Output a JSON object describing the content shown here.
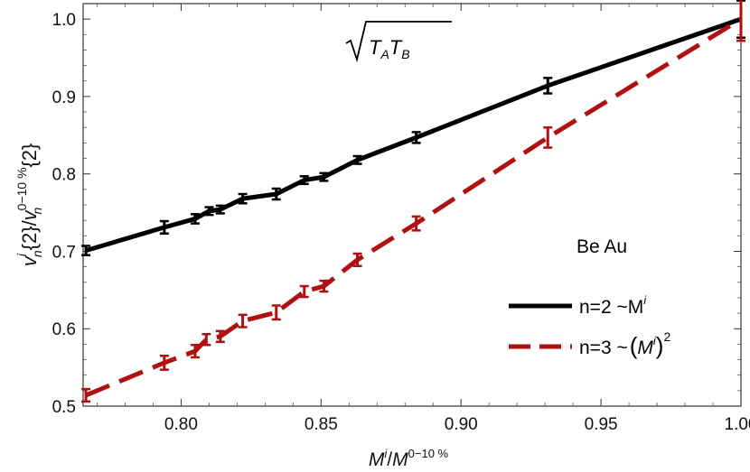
{
  "chart_data": {
    "type": "line",
    "xlabel": {
      "base": "M",
      "sup": "i",
      "sep": "/",
      "base2": "M",
      "sup2": "0−10 %"
    },
    "ylabel": {
      "v": "v",
      "sup_i": "i",
      "sub_n": "n",
      "mid": "{2}/",
      "v2": "v",
      "sup2": "0−10 %",
      "sub2": "n",
      "end": "{2}"
    },
    "xlim": [
      0.765,
      1.0
    ],
    "ylim": [
      0.5,
      1.02
    ],
    "x_ticks": [
      0.8,
      0.85,
      0.9,
      0.95,
      1.0
    ],
    "x_tick_labels": [
      "0.80",
      "0.85",
      "0.90",
      "0.95",
      "1.00"
    ],
    "y_ticks": [
      0.5,
      0.6,
      0.7,
      0.8,
      0.9,
      1.0
    ],
    "y_tick_labels": [
      "0.5",
      "0.6",
      "0.7",
      "0.8",
      "0.9",
      "1.0"
    ],
    "annotation_formula": "T_A T_B under square root",
    "annotation_system": "Be Au",
    "legend_placement": "right",
    "series": [
      {
        "name": "n=2 ~M^i",
        "legend_text": "n=2 ~M",
        "legend_sup": "i",
        "color": "#000000",
        "style": "solid",
        "x": [
          0.766,
          0.794,
          0.805,
          0.81,
          0.814,
          0.822,
          0.834,
          0.844,
          0.851,
          0.863,
          0.884,
          0.931,
          1.0
        ],
        "y": [
          0.701,
          0.731,
          0.742,
          0.752,
          0.754,
          0.768,
          0.774,
          0.792,
          0.796,
          0.818,
          0.847,
          0.914,
          1.0
        ],
        "err": [
          0.006,
          0.008,
          0.006,
          0.005,
          0.005,
          0.006,
          0.007,
          0.005,
          0.005,
          0.005,
          0.007,
          0.01,
          0.024
        ]
      },
      {
        "name": "n=3 ~(M^i)^2",
        "legend_text": "n=3 ~",
        "legend_sup": "i",
        "legend_sup2": "2",
        "color": "#b01010",
        "style": "dashed",
        "x": [
          0.766,
          0.794,
          0.805,
          0.809,
          0.814,
          0.822,
          0.834,
          0.844,
          0.851,
          0.863,
          0.884,
          0.931,
          1.0
        ],
        "y": [
          0.514,
          0.556,
          0.571,
          0.586,
          0.59,
          0.61,
          0.621,
          0.648,
          0.655,
          0.689,
          0.736,
          0.847,
          1.0
        ],
        "err": [
          0.008,
          0.009,
          0.008,
          0.007,
          0.007,
          0.008,
          0.009,
          0.007,
          0.007,
          0.008,
          0.009,
          0.013,
          0.028
        ]
      }
    ]
  }
}
